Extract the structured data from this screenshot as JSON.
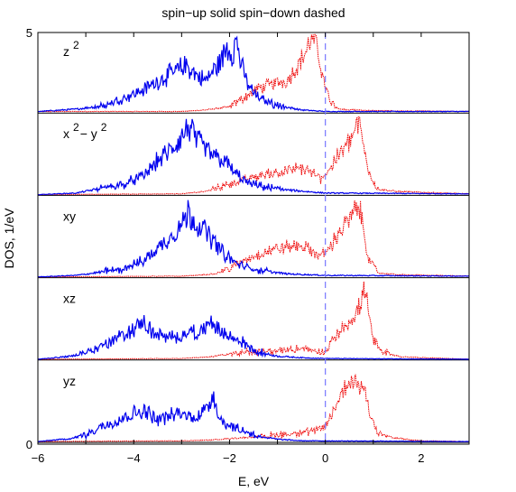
{
  "chart_data": {
    "type": "line",
    "title": "spin−up solid spin−down dashed",
    "xlabel": "E, eV",
    "ylabel": "DOS, 1/eV",
    "xlim": [
      -6,
      3
    ],
    "x_ticks": [
      -6,
      -4,
      -2,
      0,
      2
    ],
    "y_tick_labels": [
      "5",
      "0"
    ],
    "fermi_level": 0,
    "grid": false,
    "colors": {
      "spin_up": "#0000ee",
      "spin_down": "#ee0000",
      "fermi": "#7777ff"
    },
    "panels": [
      {
        "label": "z",
        "label_sup": "2",
        "spin_up": [
          [
            -6,
            0.02
          ],
          [
            -5.2,
            0.05
          ],
          [
            -4.6,
            0.1
          ],
          [
            -4.2,
            0.2
          ],
          [
            -3.8,
            0.3
          ],
          [
            -3.4,
            0.45
          ],
          [
            -3.1,
            0.55
          ],
          [
            -2.9,
            0.62
          ],
          [
            -2.7,
            0.5
          ],
          [
            -2.5,
            0.42
          ],
          [
            -2.3,
            0.58
          ],
          [
            -2.15,
            0.7
          ],
          [
            -2.05,
            0.88
          ],
          [
            -1.95,
            0.78
          ],
          [
            -1.85,
            0.95
          ],
          [
            -1.75,
            0.6
          ],
          [
            -1.6,
            0.35
          ],
          [
            -1.4,
            0.2
          ],
          [
            -1.0,
            0.1
          ],
          [
            -0.5,
            0.04
          ],
          [
            0,
            0.02
          ],
          [
            3,
            0.02
          ]
        ],
        "spin_down": [
          [
            -6,
            0.02
          ],
          [
            -3,
            0.02
          ],
          [
            -2.5,
            0.04
          ],
          [
            -2,
            0.08
          ],
          [
            -1.7,
            0.2
          ],
          [
            -1.4,
            0.32
          ],
          [
            -1.1,
            0.38
          ],
          [
            -0.8,
            0.42
          ],
          [
            -0.6,
            0.6
          ],
          [
            -0.4,
            0.8
          ],
          [
            -0.3,
            0.98
          ],
          [
            -0.2,
            0.92
          ],
          [
            -0.12,
            0.7
          ],
          [
            -0.05,
            0.45
          ],
          [
            0.1,
            0.15
          ],
          [
            0.3,
            0.05
          ],
          [
            1,
            0.03
          ],
          [
            3,
            0.02
          ]
        ]
      },
      {
        "label": "x",
        "label_sup": "2",
        "label_mid": "− y",
        "label_sup2": "2",
        "spin_up": [
          [
            -6,
            0.01
          ],
          [
            -5.2,
            0.03
          ],
          [
            -4.6,
            0.1
          ],
          [
            -4.2,
            0.15
          ],
          [
            -3.8,
            0.25
          ],
          [
            -3.5,
            0.45
          ],
          [
            -3.2,
            0.6
          ],
          [
            -3.0,
            0.75
          ],
          [
            -2.85,
            0.9
          ],
          [
            -2.7,
            0.72
          ],
          [
            -2.5,
            0.6
          ],
          [
            -2.3,
            0.5
          ],
          [
            -2.1,
            0.45
          ],
          [
            -1.9,
            0.3
          ],
          [
            -1.6,
            0.15
          ],
          [
            -1.2,
            0.1
          ],
          [
            -0.8,
            0.07
          ],
          [
            -0.4,
            0.05
          ],
          [
            0,
            0.03
          ],
          [
            3,
            0.02
          ]
        ],
        "spin_down": [
          [
            -6,
            0.01
          ],
          [
            -3,
            0.02
          ],
          [
            -2.5,
            0.05
          ],
          [
            -2,
            0.15
          ],
          [
            -1.6,
            0.22
          ],
          [
            -1.2,
            0.28
          ],
          [
            -0.8,
            0.32
          ],
          [
            -0.5,
            0.35
          ],
          [
            -0.3,
            0.3
          ],
          [
            -0.1,
            0.22
          ],
          [
            0.1,
            0.35
          ],
          [
            0.3,
            0.55
          ],
          [
            0.5,
            0.7
          ],
          [
            0.6,
            0.82
          ],
          [
            0.7,
            0.95
          ],
          [
            0.78,
            0.7
          ],
          [
            0.9,
            0.3
          ],
          [
            1.1,
            0.08
          ],
          [
            1.5,
            0.05
          ],
          [
            3,
            0.02
          ]
        ]
      },
      {
        "label": "xy",
        "spin_up": [
          [
            -6,
            0.01
          ],
          [
            -5.2,
            0.03
          ],
          [
            -4.6,
            0.08
          ],
          [
            -4.2,
            0.12
          ],
          [
            -3.8,
            0.22
          ],
          [
            -3.5,
            0.38
          ],
          [
            -3.2,
            0.55
          ],
          [
            -3.0,
            0.7
          ],
          [
            -2.85,
            0.85
          ],
          [
            -2.7,
            0.72
          ],
          [
            -2.5,
            0.6
          ],
          [
            -2.3,
            0.45
          ],
          [
            -2.1,
            0.3
          ],
          [
            -1.9,
            0.2
          ],
          [
            -1.6,
            0.12
          ],
          [
            -1.2,
            0.08
          ],
          [
            -0.8,
            0.05
          ],
          [
            0,
            0.03
          ],
          [
            3,
            0.02
          ]
        ],
        "spin_down": [
          [
            -6,
            0.01
          ],
          [
            -3,
            0.02
          ],
          [
            -2.3,
            0.05
          ],
          [
            -2,
            0.12
          ],
          [
            -1.6,
            0.25
          ],
          [
            -1.2,
            0.35
          ],
          [
            -0.8,
            0.4
          ],
          [
            -0.5,
            0.42
          ],
          [
            -0.3,
            0.35
          ],
          [
            -0.1,
            0.28
          ],
          [
            0.1,
            0.4
          ],
          [
            0.3,
            0.6
          ],
          [
            0.5,
            0.75
          ],
          [
            0.6,
            0.85
          ],
          [
            0.7,
            0.92
          ],
          [
            0.78,
            0.7
          ],
          [
            0.9,
            0.25
          ],
          [
            1.1,
            0.06
          ],
          [
            1.5,
            0.04
          ],
          [
            3,
            0.02
          ]
        ]
      },
      {
        "label": "xz",
        "spin_up": [
          [
            -6,
            0.01
          ],
          [
            -5.3,
            0.05
          ],
          [
            -5.0,
            0.1
          ],
          [
            -4.6,
            0.2
          ],
          [
            -4.3,
            0.3
          ],
          [
            -4.0,
            0.4
          ],
          [
            -3.8,
            0.5
          ],
          [
            -3.6,
            0.35
          ],
          [
            -3.3,
            0.28
          ],
          [
            -3.0,
            0.32
          ],
          [
            -2.8,
            0.38
          ],
          [
            -2.6,
            0.34
          ],
          [
            -2.4,
            0.52
          ],
          [
            -2.25,
            0.4
          ],
          [
            -2.0,
            0.3
          ],
          [
            -1.7,
            0.22
          ],
          [
            -1.4,
            0.1
          ],
          [
            -1,
            0.05
          ],
          [
            -0.5,
            0.03
          ],
          [
            0,
            0.02
          ],
          [
            3,
            0.01
          ]
        ],
        "spin_down": [
          [
            -6,
            0.01
          ],
          [
            -3,
            0.02
          ],
          [
            -2.4,
            0.04
          ],
          [
            -2,
            0.08
          ],
          [
            -1.5,
            0.1
          ],
          [
            -1,
            0.12
          ],
          [
            -0.5,
            0.15
          ],
          [
            -0.2,
            0.12
          ],
          [
            0,
            0.1
          ],
          [
            0.2,
            0.3
          ],
          [
            0.4,
            0.45
          ],
          [
            0.6,
            0.55
          ],
          [
            0.72,
            0.7
          ],
          [
            0.82,
            0.95
          ],
          [
            0.9,
            0.6
          ],
          [
            1.0,
            0.25
          ],
          [
            1.2,
            0.1
          ],
          [
            1.6,
            0.04
          ],
          [
            3,
            0.01
          ]
        ]
      },
      {
        "label": "yz",
        "spin_up": [
          [
            -6,
            0.01
          ],
          [
            -5.3,
            0.05
          ],
          [
            -5.0,
            0.1
          ],
          [
            -4.7,
            0.2
          ],
          [
            -4.4,
            0.28
          ],
          [
            -4.1,
            0.35
          ],
          [
            -3.8,
            0.42
          ],
          [
            -3.5,
            0.3
          ],
          [
            -3.2,
            0.35
          ],
          [
            -3.0,
            0.38
          ],
          [
            -2.8,
            0.32
          ],
          [
            -2.6,
            0.38
          ],
          [
            -2.45,
            0.45
          ],
          [
            -2.35,
            0.65
          ],
          [
            -2.2,
            0.3
          ],
          [
            -2.0,
            0.22
          ],
          [
            -1.7,
            0.15
          ],
          [
            -1.4,
            0.08
          ],
          [
            -1,
            0.04
          ],
          [
            -0.5,
            0.02
          ],
          [
            3,
            0.01
          ]
        ],
        "spin_down": [
          [
            -6,
            0.01
          ],
          [
            -3,
            0.02
          ],
          [
            -2.4,
            0.03
          ],
          [
            -2,
            0.05
          ],
          [
            -1.5,
            0.07
          ],
          [
            -1,
            0.1
          ],
          [
            -0.5,
            0.12
          ],
          [
            -0.2,
            0.15
          ],
          [
            0,
            0.2
          ],
          [
            0.2,
            0.45
          ],
          [
            0.4,
            0.7
          ],
          [
            0.5,
            0.82
          ],
          [
            0.6,
            0.78
          ],
          [
            0.75,
            0.75
          ],
          [
            0.85,
            0.62
          ],
          [
            0.95,
            0.35
          ],
          [
            1.1,
            0.12
          ],
          [
            1.4,
            0.06
          ],
          [
            2,
            0.02
          ],
          [
            3,
            0.01
          ]
        ]
      }
    ]
  }
}
